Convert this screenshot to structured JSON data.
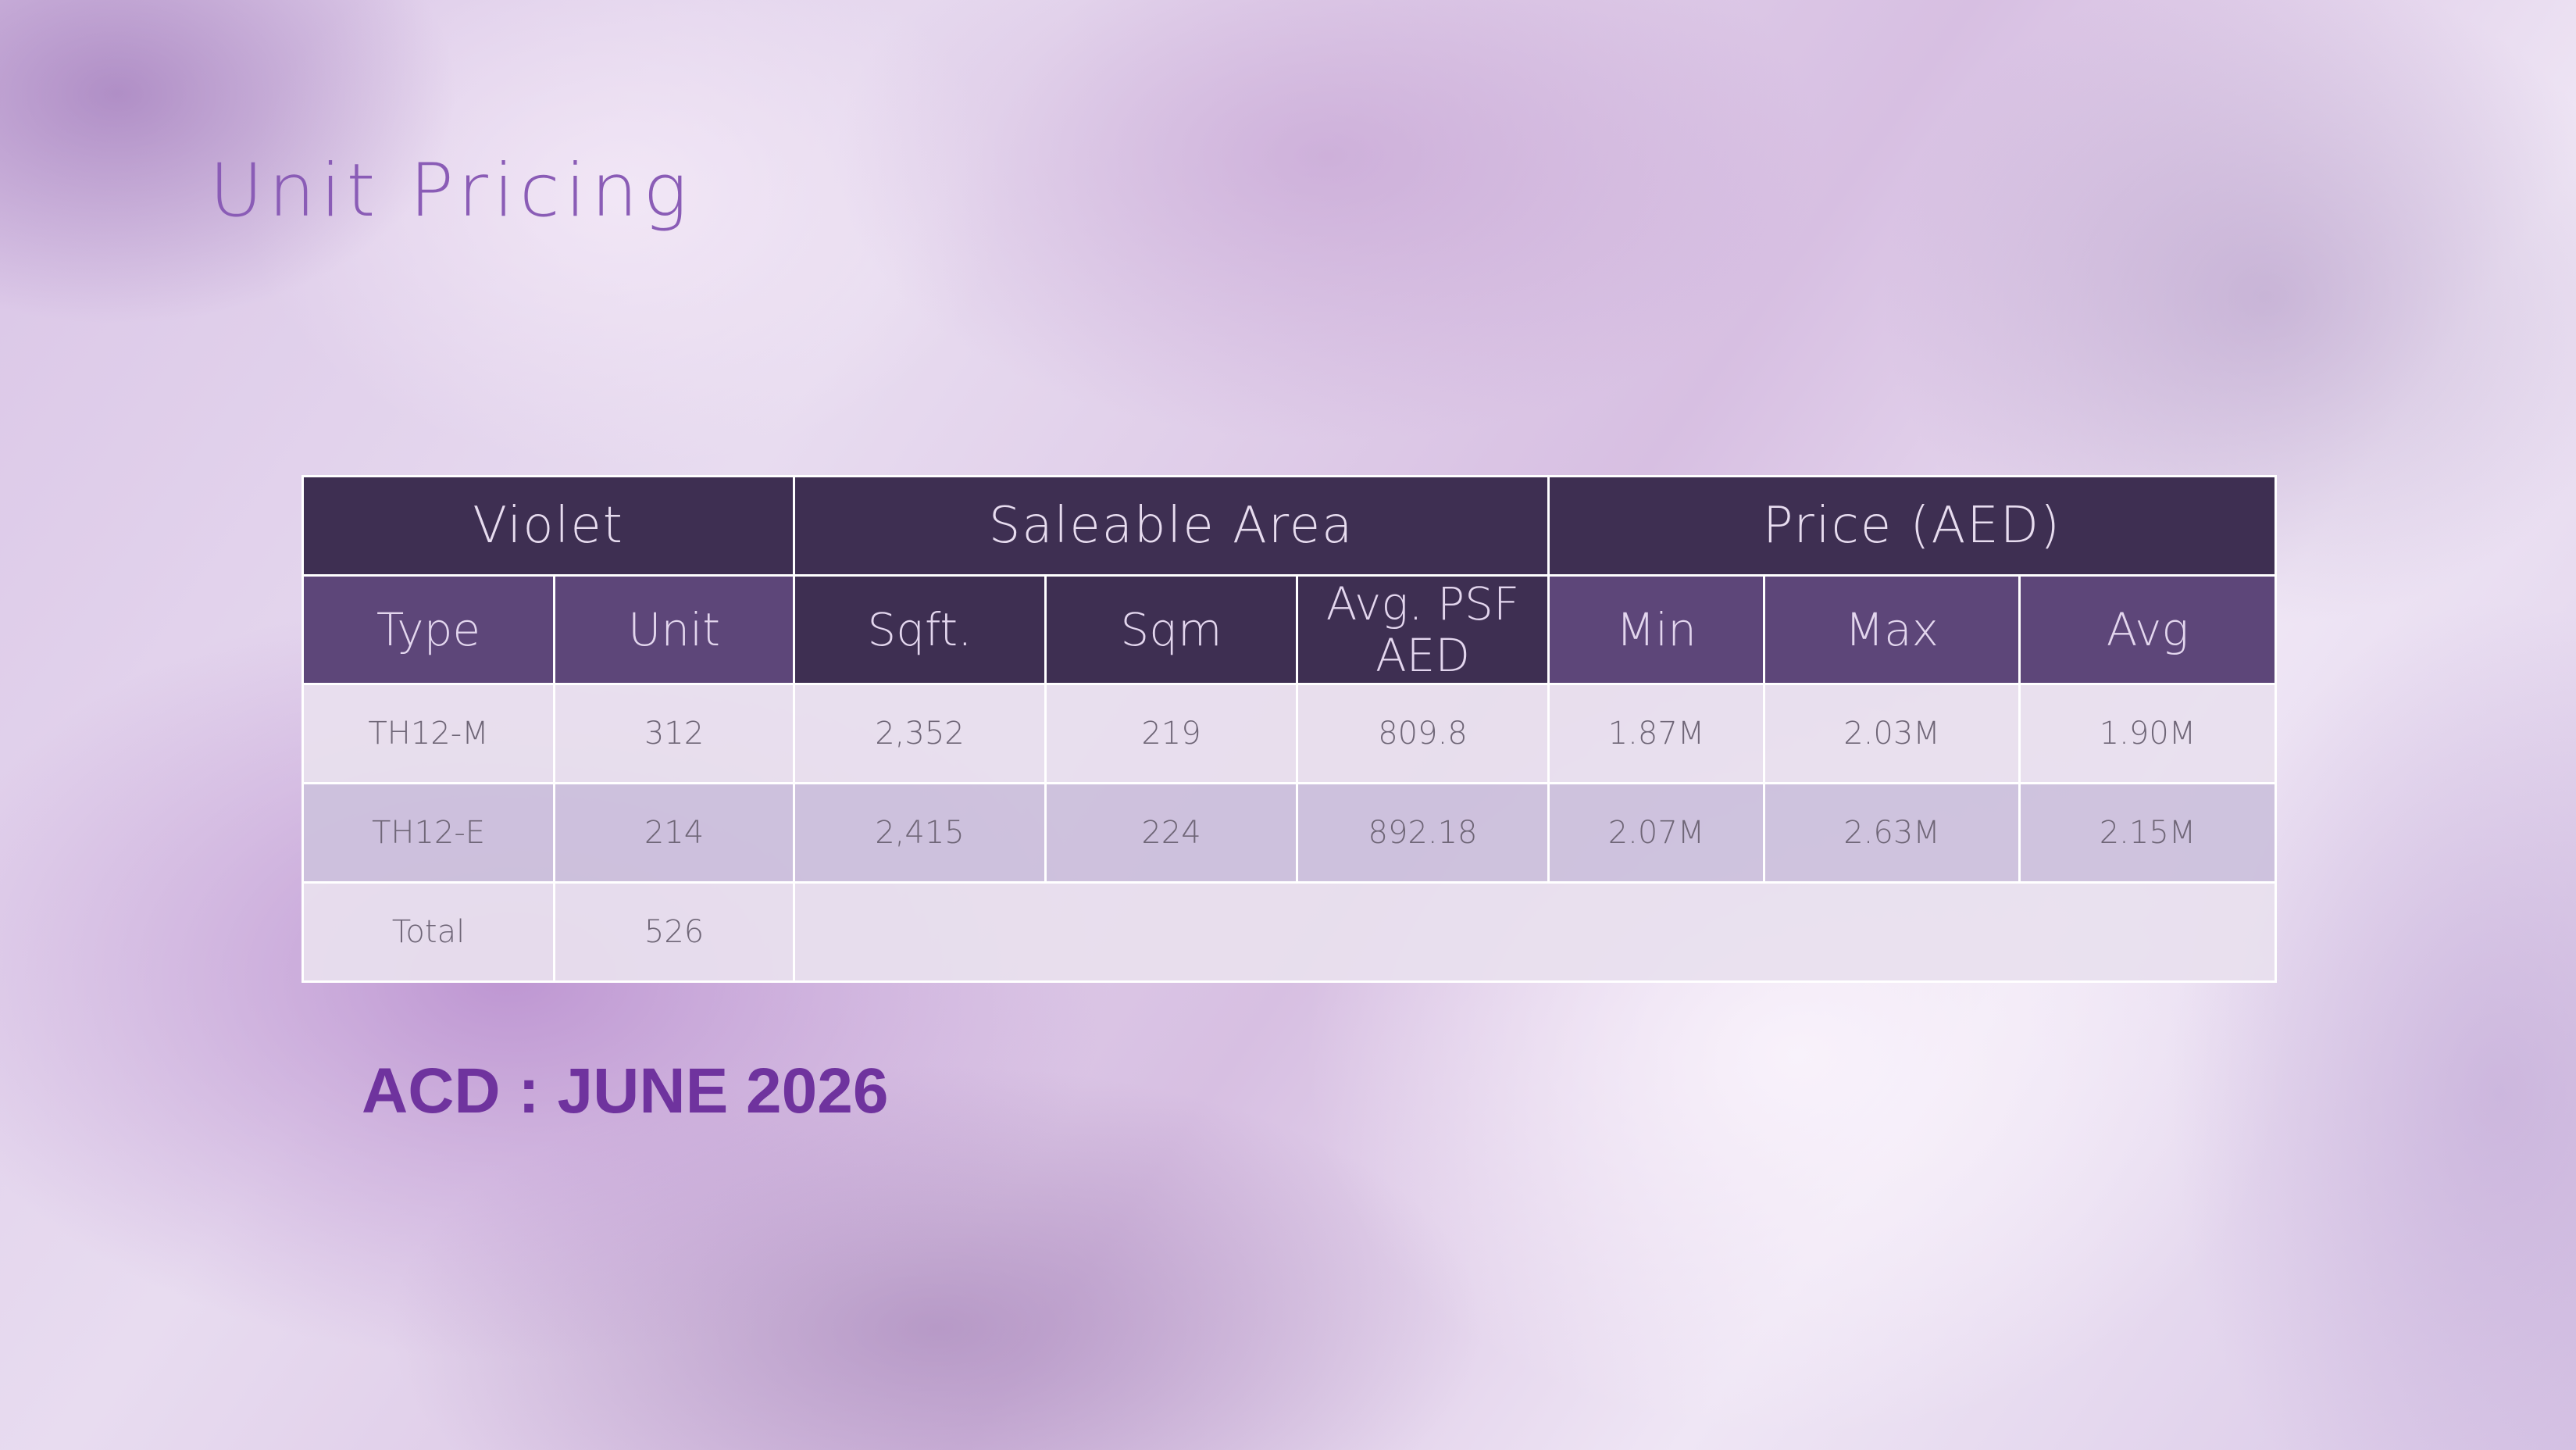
{
  "slide": {
    "title": "Unit Pricing",
    "acd_note": "ACD : JUNE 2026"
  },
  "table": {
    "group_headers": {
      "project": "Violet",
      "area": "Saleable Area",
      "price": "Price (AED)"
    },
    "column_headers": {
      "type": "Type",
      "unit": "Unit",
      "sqft": "Sqft.",
      "sqm": "Sqm",
      "psf_line1": "Avg. PSF",
      "psf_line2": "AED",
      "min": "Min",
      "max": "Max",
      "avg": "Avg"
    },
    "rows": [
      {
        "type": "TH12-M",
        "unit": "312",
        "sqft": "2,352",
        "sqm": "219",
        "psf": "809.8",
        "min": "1.87M",
        "max": "2.03M",
        "avg": "1.90M"
      },
      {
        "type": "TH12-E",
        "unit": "214",
        "sqft": "2,415",
        "sqm": "224",
        "psf": "892.18",
        "min": "2.07M",
        "max": "2.63M",
        "avg": "2.15M"
      }
    ],
    "total": {
      "label": "Total",
      "unit": "526"
    }
  },
  "colors": {
    "header_dark": "#3e2f52",
    "header_light": "#5d4679",
    "row_light": "#e8e0ee",
    "row_dark": "#ccc1dc",
    "title": "#8a5cb6",
    "acd": "#6f339e"
  }
}
